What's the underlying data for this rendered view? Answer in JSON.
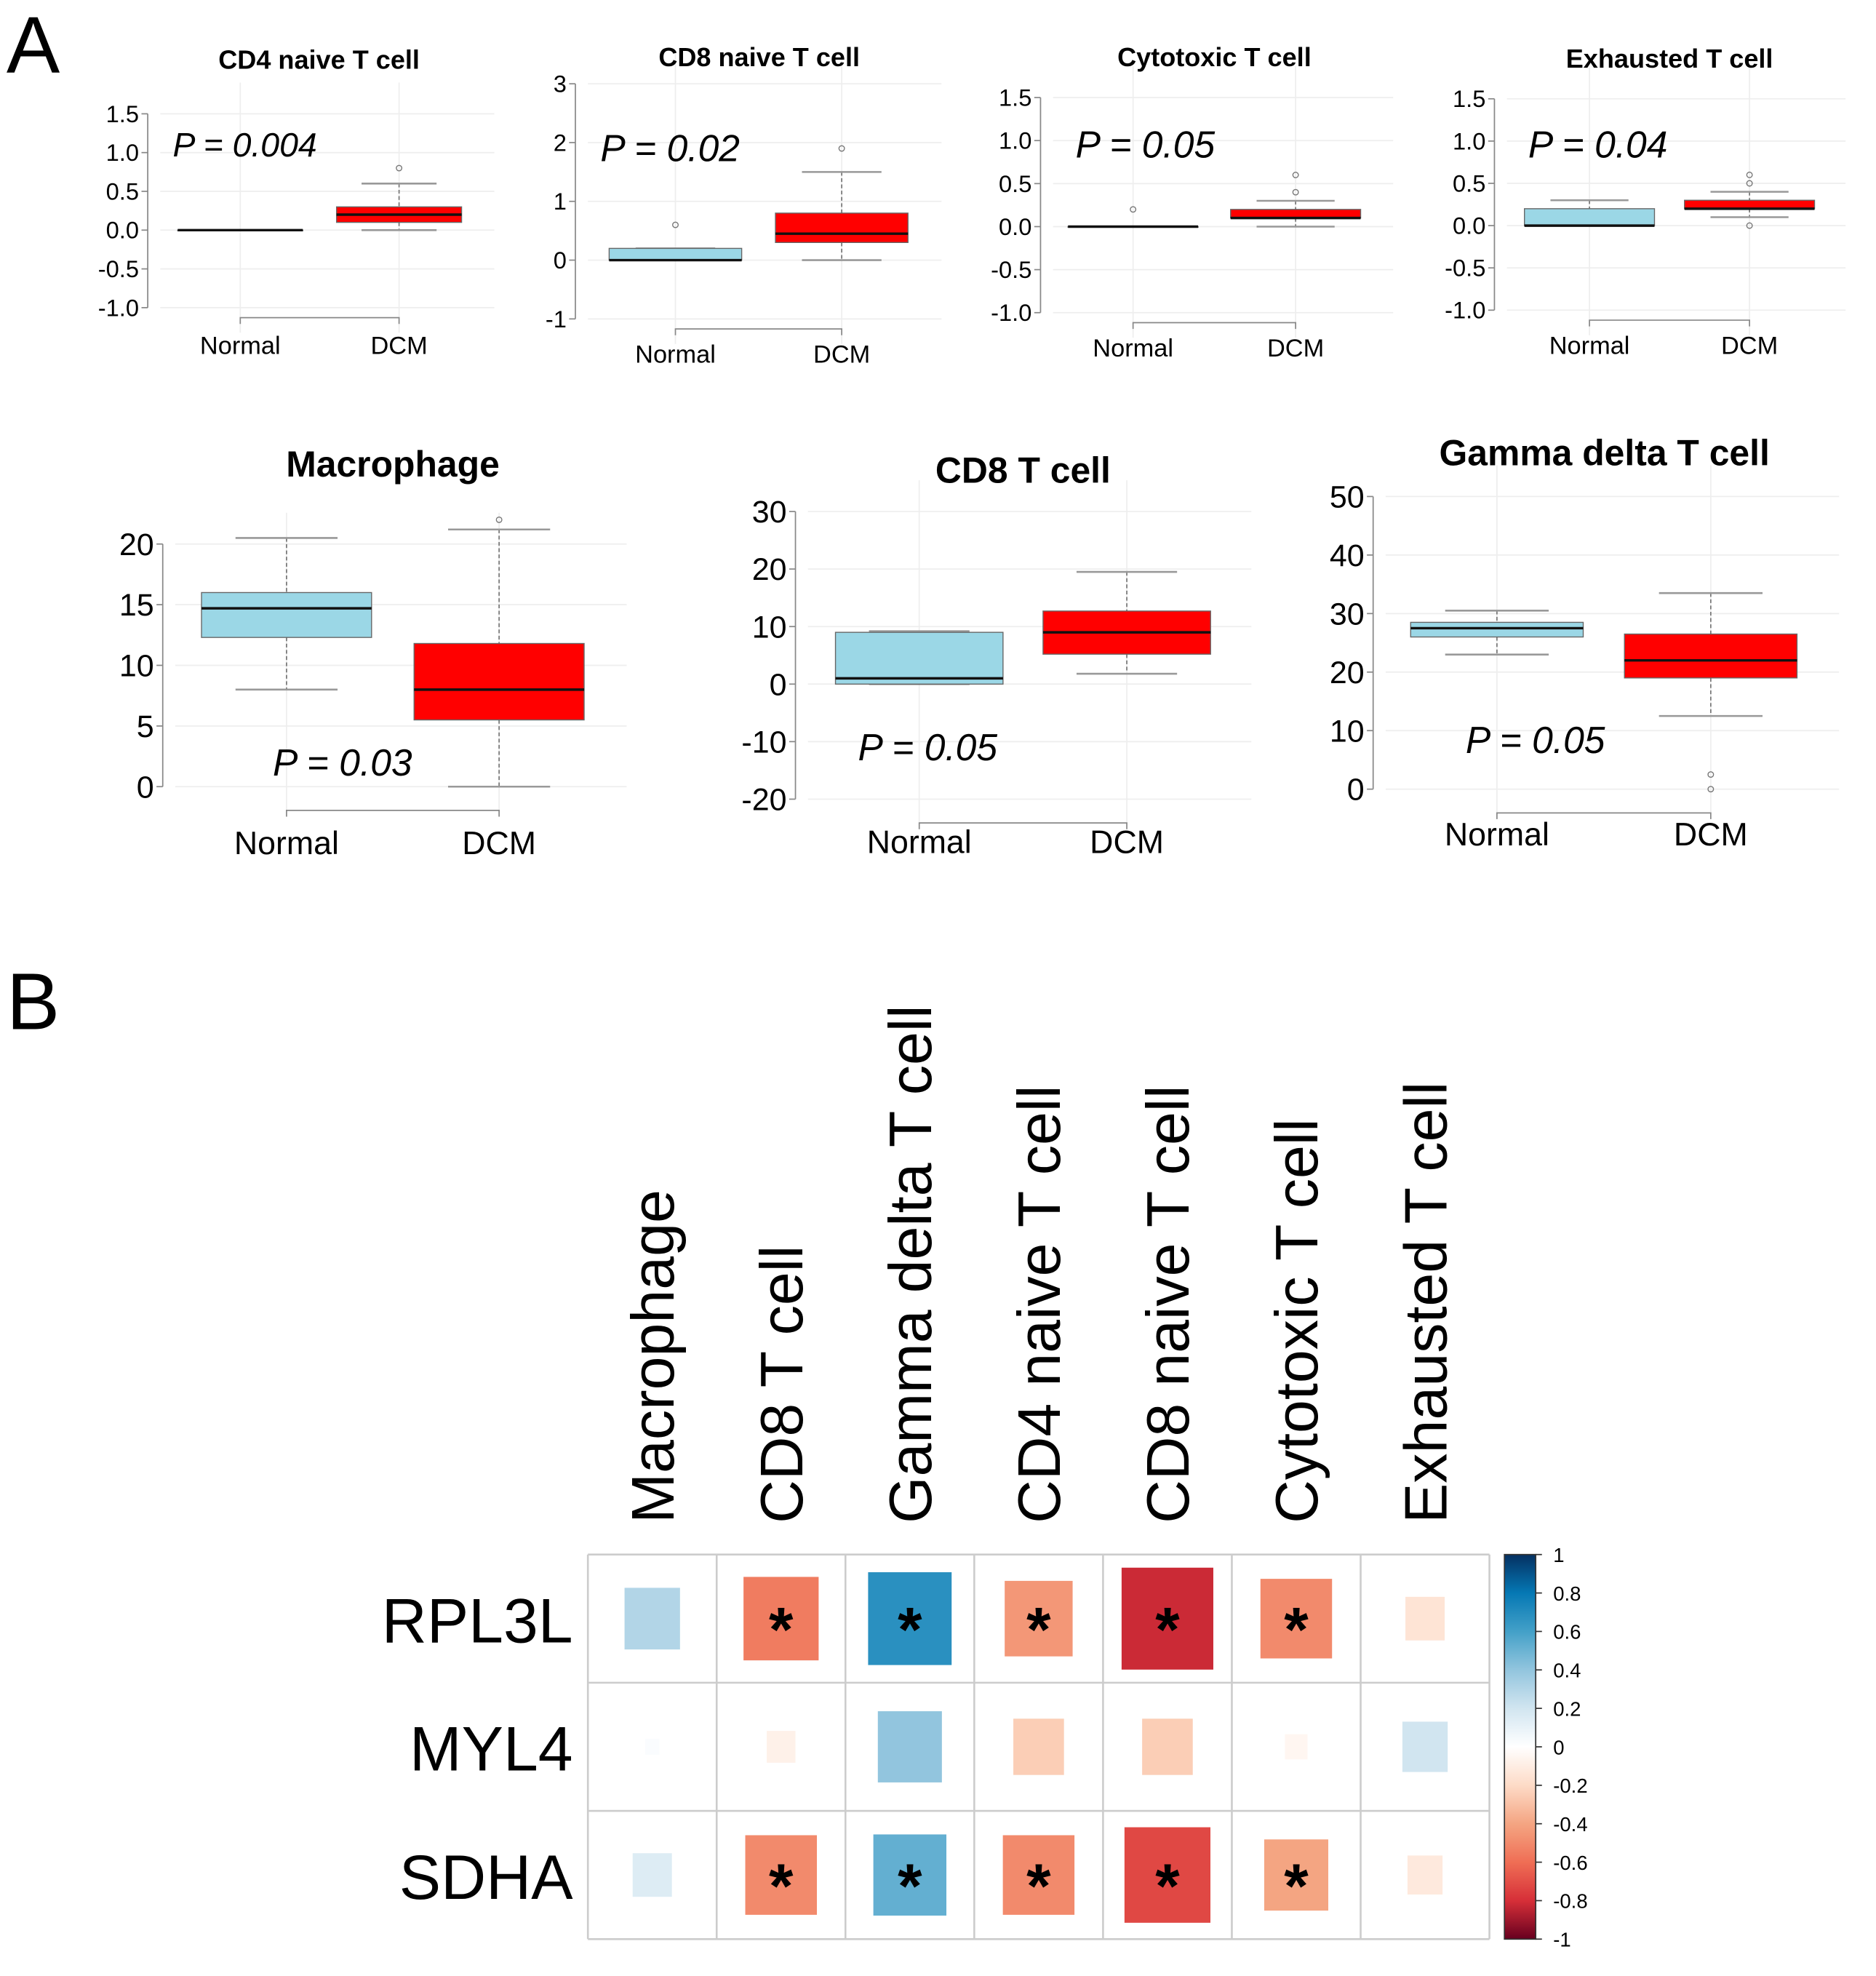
{
  "panel_labels": {
    "a": "A",
    "b": "B"
  },
  "colors": {
    "normal": "#9bd7e6",
    "dcm": "#ff0000",
    "grid": "#eeeeee",
    "axis": "#888888"
  },
  "chart_data": [
    {
      "type": "box",
      "title": "CD4 naive T cell",
      "p_label": "P = 0.004",
      "categories": [
        "Normal",
        "DCM"
      ],
      "ylim": [
        -1.0,
        1.5
      ],
      "yticks": [
        -1.0,
        -0.5,
        0.0,
        0.5,
        1.0,
        1.5
      ],
      "ytick_labels": [
        "-1.0",
        "-0.5",
        "0.0",
        "0.5",
        "1.0",
        "1.5"
      ],
      "boxes": [
        {
          "min": 0,
          "q1": 0,
          "median": 0,
          "q3": 0,
          "max": 0,
          "outliers": []
        },
        {
          "min": 0,
          "q1": 0.1,
          "median": 0.2,
          "q3": 0.3,
          "max": 0.6,
          "outliers": [
            0.8
          ]
        }
      ]
    },
    {
      "type": "box",
      "title": "CD8 naive T cell",
      "p_label": "P = 0.02",
      "categories": [
        "Normal",
        "DCM"
      ],
      "ylim": [
        -1,
        3
      ],
      "yticks": [
        -1,
        0,
        1,
        2,
        3
      ],
      "ytick_labels": [
        "-1",
        "0",
        "1",
        "2",
        "3"
      ],
      "boxes": [
        {
          "min": 0,
          "q1": 0,
          "median": 0,
          "q3": 0.2,
          "max": 0.2,
          "outliers": [
            0.6
          ]
        },
        {
          "min": 0,
          "q1": 0.3,
          "median": 0.45,
          "q3": 0.8,
          "max": 1.5,
          "outliers": [
            1.9
          ]
        }
      ]
    },
    {
      "type": "box",
      "title": "Cytotoxic T cell",
      "p_label": "P = 0.05",
      "categories": [
        "Normal",
        "DCM"
      ],
      "ylim": [
        -1.0,
        1.5
      ],
      "yticks": [
        -1.0,
        -0.5,
        0.0,
        0.5,
        1.0,
        1.5
      ],
      "ytick_labels": [
        "-1.0",
        "-0.5",
        "0.0",
        "0.5",
        "1.0",
        "1.5"
      ],
      "boxes": [
        {
          "min": 0,
          "q1": 0,
          "median": 0,
          "q3": 0,
          "max": 0,
          "outliers": [
            0.2
          ]
        },
        {
          "min": 0,
          "q1": 0.1,
          "median": 0.1,
          "q3": 0.2,
          "max": 0.3,
          "outliers": [
            0.4,
            0.6
          ]
        }
      ]
    },
    {
      "type": "box",
      "title": "Exhausted T cell",
      "p_label": "P = 0.04",
      "categories": [
        "Normal",
        "DCM"
      ],
      "ylim": [
        -1.0,
        1.5
      ],
      "yticks": [
        -1.0,
        -0.5,
        0.0,
        0.5,
        1.0,
        1.5
      ],
      "ytick_labels": [
        "-1.0",
        "-0.5",
        "0.0",
        "0.5",
        "1.0",
        "1.5"
      ],
      "boxes": [
        {
          "min": 0,
          "q1": 0,
          "median": 0,
          "q3": 0.2,
          "max": 0.3,
          "outliers": []
        },
        {
          "min": 0.1,
          "q1": 0.2,
          "median": 0.2,
          "q3": 0.3,
          "max": 0.4,
          "outliers": [
            0,
            0.5,
            0.6
          ]
        }
      ]
    },
    {
      "type": "box",
      "title": "Macrophage",
      "p_label": "P = 0.03",
      "categories": [
        "Normal",
        "DCM"
      ],
      "ylim": [
        0,
        20
      ],
      "yticks": [
        0,
        5,
        10,
        15,
        20
      ],
      "ytick_labels": [
        "0",
        "5",
        "10",
        "15",
        "20"
      ],
      "boxes": [
        {
          "min": 8,
          "q1": 12.3,
          "median": 14.7,
          "q3": 16,
          "max": 20.5,
          "outliers": []
        },
        {
          "min": 0,
          "q1": 5.5,
          "median": 8,
          "q3": 11.8,
          "max": 21.2,
          "outliers": [
            22
          ]
        }
      ]
    },
    {
      "type": "box",
      "title": "CD8 T cell",
      "p_label": "P = 0.05",
      "categories": [
        "Normal",
        "DCM"
      ],
      "ylim": [
        -20,
        30
      ],
      "yticks": [
        -20,
        -10,
        0,
        10,
        20,
        30
      ],
      "ytick_labels": [
        "-20",
        "-10",
        "0",
        "10",
        "20",
        "30"
      ],
      "boxes": [
        {
          "min": 0,
          "q1": 0,
          "median": 1,
          "q3": 9,
          "max": 9.2,
          "outliers": []
        },
        {
          "min": 1.8,
          "q1": 5.2,
          "median": 9,
          "q3": 12.7,
          "max": 19.5,
          "outliers": []
        }
      ]
    },
    {
      "type": "box",
      "title": "Gamma delta T cell",
      "p_label": "P = 0.05",
      "categories": [
        "Normal",
        "DCM"
      ],
      "ylim": [
        0,
        50
      ],
      "yticks": [
        0,
        10,
        20,
        30,
        40,
        50
      ],
      "ytick_labels": [
        "0",
        "10",
        "20",
        "30",
        "40",
        "50"
      ],
      "boxes": [
        {
          "min": 23,
          "q1": 26,
          "median": 27.5,
          "q3": 28.5,
          "max": 30.5,
          "outliers": []
        },
        {
          "min": 12.5,
          "q1": 19,
          "median": 22,
          "q3": 26.5,
          "max": 33.5,
          "outliers": [
            0,
            2.5
          ]
        }
      ]
    },
    {
      "type": "heatmap",
      "rows": [
        "RPL3L",
        "MYL4",
        "SDHA"
      ],
      "columns": [
        "Macrophage",
        "CD8 T cell",
        "Gamma delta T cell",
        "CD4 naive T cell",
        "CD8 naive T cell",
        "Cytotoxic T cell",
        "Exhausted T cell"
      ],
      "values": [
        [
          0.3,
          -0.55,
          0.68,
          -0.45,
          -0.82,
          -0.5,
          -0.15
        ],
        [
          0.02,
          -0.08,
          0.4,
          -0.25,
          -0.25,
          -0.05,
          0.2
        ],
        [
          0.15,
          -0.5,
          0.52,
          -0.5,
          -0.72,
          -0.4,
          -0.12
        ]
      ],
      "significant": [
        [
          false,
          true,
          true,
          true,
          true,
          true,
          false
        ],
        [
          false,
          false,
          false,
          false,
          false,
          false,
          false
        ],
        [
          false,
          true,
          true,
          true,
          true,
          true,
          false
        ]
      ],
      "star_label": "*",
      "colorbar": {
        "range": [
          -1,
          1
        ],
        "ticks": [
          1,
          0.8,
          0.6,
          0.4,
          0.2,
          0,
          -0.2,
          -0.4,
          -0.6,
          -0.8,
          -1
        ],
        "tick_labels": [
          "1",
          "0.8",
          "0.6",
          "0.4",
          "0.2",
          "0",
          "-0.2",
          "-0.4",
          "-0.6",
          "-0.8",
          "-1"
        ]
      }
    }
  ]
}
